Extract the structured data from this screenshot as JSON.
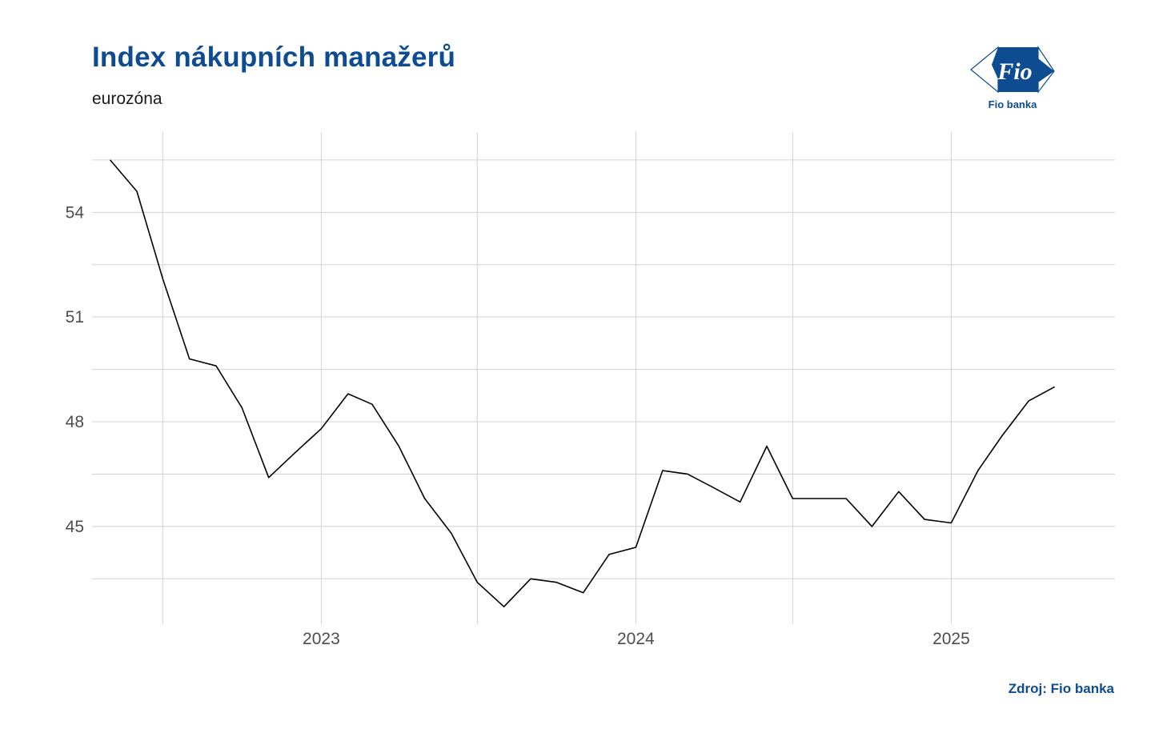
{
  "title": "Index nákupních manažerů",
  "subtitle": "eurozóna",
  "caption": "Zdroj: Fio banka",
  "logo": {
    "text": "Fio",
    "label": "Fio banka"
  },
  "colors": {
    "title": "#0e4c92",
    "line": "#000000",
    "grid": "#d3d3d3",
    "logo": "#0e4c92"
  },
  "chart_data": {
    "type": "line",
    "title": "Index nákupních manažerů",
    "subtitle": "eurozóna",
    "xlabel": "",
    "ylabel": "",
    "x_ticks": [
      "2023",
      "2024",
      "2025"
    ],
    "y_ticks": [
      45,
      48,
      51,
      54
    ],
    "ylim": [
      42.2,
      56.3
    ],
    "xlim": [
      "2022-04-10",
      "2025-07-10"
    ],
    "grid": true,
    "legend": "none",
    "series": [
      {
        "x": [
          "2022-05-01",
          "2022-06-01",
          "2022-07-01",
          "2022-08-01",
          "2022-09-01",
          "2022-10-01",
          "2022-11-01",
          "2022-12-01",
          "2023-01-01",
          "2023-02-01",
          "2023-03-01",
          "2023-04-01",
          "2023-05-01",
          "2023-06-01",
          "2023-07-01",
          "2023-08-01",
          "2023-09-01",
          "2023-10-01",
          "2023-11-01",
          "2023-12-01",
          "2024-01-01",
          "2024-02-01",
          "2024-03-01",
          "2024-04-01",
          "2024-05-01",
          "2024-06-01",
          "2024-07-01",
          "2024-08-01",
          "2024-09-01",
          "2024-10-01",
          "2024-11-01",
          "2024-12-01",
          "2025-01-01",
          "2025-02-01",
          "2025-03-01",
          "2025-04-01",
          "2025-05-01"
        ],
        "values": [
          55.5,
          54.6,
          52.1,
          49.8,
          49.6,
          48.4,
          46.4,
          47.1,
          47.8,
          48.8,
          48.5,
          47.3,
          45.8,
          44.8,
          43.4,
          42.7,
          43.5,
          43.4,
          43.1,
          44.2,
          44.4,
          46.6,
          46.5,
          46.1,
          45.7,
          47.3,
          45.8,
          45.8,
          45.8,
          45.0,
          46.0,
          45.2,
          45.1,
          46.6,
          47.6,
          48.6,
          49.0
        ]
      }
    ]
  }
}
